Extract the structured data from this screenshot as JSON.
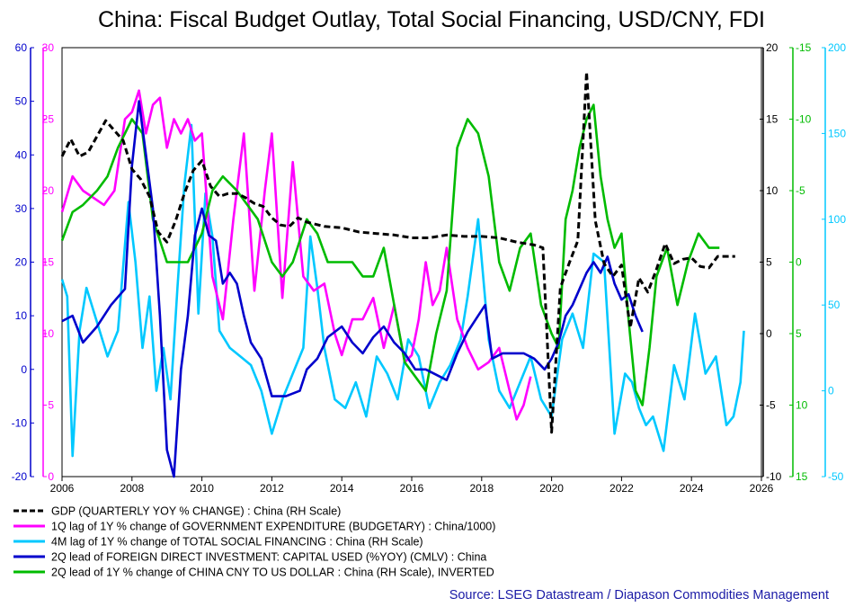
{
  "chart_data": {
    "type": "line",
    "title": "China: Fiscal Budget Outlay, Total Social Financing, USD/CNY, FDI",
    "source": "Source: LSEG Datastream / Diapason Commodities Management",
    "x_axis": {
      "range": [
        2006,
        2026
      ],
      "ticks": [
        "2006",
        "2008",
        "2010",
        "2012",
        "2014",
        "2016",
        "2018",
        "2020",
        "2022",
        "2024",
        "2026"
      ]
    },
    "axes": {
      "left_fdi": {
        "color": "#0000cc",
        "range": [
          -20,
          60
        ],
        "ticks": [
          "-20",
          "-10",
          "0",
          "10",
          "20",
          "30",
          "40",
          "50",
          "60"
        ]
      },
      "left_exp": {
        "color": "#ff00ff",
        "range": [
          0,
          30
        ],
        "ticks": [
          "0",
          "5",
          "10",
          "15",
          "20",
          "25",
          "30"
        ]
      },
      "right_gdp": {
        "color": "#000000",
        "range": [
          -10,
          20
        ],
        "ticks": [
          "-10",
          "-5",
          "0",
          "5",
          "10",
          "15",
          "20"
        ]
      },
      "right_cny": {
        "color": "#00bb00",
        "range": [
          15,
          -15
        ],
        "inverted": true,
        "ticks": [
          "15",
          "10",
          "5",
          "0",
          "-5",
          "-10",
          "-15"
        ]
      },
      "right_tsf": {
        "color": "#00c8ff",
        "range": [
          -50,
          200
        ],
        "ticks": [
          "-50",
          "0",
          "50",
          "100",
          "150",
          "200"
        ]
      }
    },
    "legend": [
      {
        "label": "GDP (QUARTERLY YOY % CHANGE) : China  (RH Scale)",
        "color": "#000000",
        "dashed": true
      },
      {
        "label": "1Q lag of 1Y % change of GOVERNMENT EXPENDITURE (BUDGETARY) : China/1000)",
        "color": "#ff00ff"
      },
      {
        "label": "4M lag of 1Y % change of TOTAL SOCIAL FINANCING : China (RH Scale)",
        "color": "#00c8ff"
      },
      {
        "label": "2Q lead of FOREIGN DIRECT INVESTMENT: CAPITAL USED (%YOY) (CMLV) : China",
        "color": "#0000cc"
      },
      {
        "label": "2Q lead of 1Y % change of CHINA CNY TO US DOLLAR : China (RH Scale), INVERTED",
        "color": "#00bb00"
      }
    ],
    "series": [
      {
        "name": "GDP (QUARTERLY YOY % CHANGE) : China  (RH Scale)",
        "axis": "right_gdp",
        "color": "#000000",
        "dashed": true,
        "x": [
          2006.0,
          2006.25,
          2006.5,
          2006.75,
          2007.0,
          2007.25,
          2007.5,
          2007.75,
          2008.0,
          2008.25,
          2008.5,
          2008.75,
          2009.0,
          2009.25,
          2009.5,
          2009.75,
          2010.0,
          2010.25,
          2010.5,
          2010.75,
          2011.0,
          2011.25,
          2011.5,
          2011.75,
          2012.0,
          2012.25,
          2012.5,
          2012.75,
          2013.0,
          2013.5,
          2014.0,
          2014.5,
          2015.0,
          2015.5,
          2016.0,
          2016.5,
          2017.0,
          2017.5,
          2018.0,
          2018.5,
          2019.0,
          2019.5,
          2019.75,
          2020.0,
          2020.25,
          2020.5,
          2020.75,
          2021.0,
          2021.25,
          2021.5,
          2021.75,
          2022.0,
          2022.25,
          2022.5,
          2022.75,
          2023.0,
          2023.25,
          2023.5,
          2023.75,
          2024.0,
          2024.25,
          2024.5,
          2024.75,
          2025.0,
          2025.25
        ],
        "values": [
          12.4,
          13.6,
          12.4,
          12.7,
          13.8,
          14.9,
          14.2,
          13.5,
          11.5,
          10.8,
          9.6,
          7.1,
          6.4,
          7.9,
          9.8,
          11.4,
          12.1,
          10.3,
          9.6,
          9.8,
          9.8,
          9.5,
          9.1,
          8.9,
          8.1,
          7.6,
          7.5,
          8.1,
          7.8,
          7.5,
          7.4,
          7.1,
          7.0,
          6.9,
          6.7,
          6.7,
          6.9,
          6.8,
          6.8,
          6.7,
          6.4,
          6.2,
          6.0,
          -6.9,
          3.2,
          4.9,
          6.5,
          18.3,
          7.9,
          4.9,
          4.0,
          4.8,
          0.4,
          3.9,
          2.9,
          4.5,
          6.3,
          4.9,
          5.2,
          5.3,
          4.7,
          4.6,
          5.4,
          5.4,
          5.4
        ]
      },
      {
        "name": "1Q lag of 1Y % change of GOVERNMENT EXPENDITURE (BUDGETARY) : China/1000)",
        "axis": "left_exp",
        "color": "#ff00ff",
        "x": [
          2006.0,
          2006.3,
          2006.6,
          2006.9,
          2007.2,
          2007.5,
          2007.8,
          2008.0,
          2008.2,
          2008.4,
          2008.6,
          2008.8,
          2009.0,
          2009.2,
          2009.4,
          2009.6,
          2009.8,
          2010.0,
          2010.3,
          2010.6,
          2010.9,
          2011.2,
          2011.5,
          2011.8,
          2012.0,
          2012.3,
          2012.6,
          2012.9,
          2013.2,
          2013.5,
          2013.8,
          2014.0,
          2014.3,
          2014.6,
          2014.9,
          2015.2,
          2015.5,
          2015.8,
          2016.0,
          2016.2,
          2016.4,
          2016.6,
          2016.8,
          2017.0,
          2017.3,
          2017.6,
          2017.9,
          2018.2,
          2018.5,
          2018.8,
          2019.0,
          2019.2,
          2019.4
        ],
        "values": [
          18.5,
          21,
          20,
          19.5,
          19,
          20,
          25,
          25.5,
          27,
          24,
          26,
          26.5,
          23,
          25,
          24,
          25,
          23.5,
          24,
          14,
          11,
          18,
          24,
          13,
          20,
          24,
          12.5,
          22,
          14,
          13,
          13.5,
          10,
          8.5,
          11,
          11,
          12.5,
          9,
          12,
          8,
          8.5,
          11,
          15,
          12,
          13,
          16,
          11,
          9,
          7.5,
          8,
          9,
          6,
          4,
          5,
          7
        ]
      },
      {
        "name": "4M lag of 1Y % change of TOTAL SOCIAL FINANCING : China (RH Scale)",
        "axis": "right_tsf",
        "color": "#00c8ff",
        "x": [
          2006.0,
          2006.15,
          2006.3,
          2006.5,
          2006.7,
          2007.0,
          2007.3,
          2007.6,
          2007.9,
          2008.1,
          2008.3,
          2008.5,
          2008.7,
          2008.9,
          2009.1,
          2009.3,
          2009.5,
          2009.7,
          2009.9,
          2010.1,
          2010.3,
          2010.5,
          2010.8,
          2011.1,
          2011.4,
          2011.7,
          2012.0,
          2012.3,
          2012.6,
          2012.9,
          2013.1,
          2013.3,
          2013.5,
          2013.8,
          2014.1,
          2014.4,
          2014.7,
          2015.0,
          2015.3,
          2015.6,
          2015.9,
          2016.2,
          2016.5,
          2016.8,
          2017.1,
          2017.4,
          2017.6,
          2017.9,
          2018.2,
          2018.5,
          2018.8,
          2019.1,
          2019.4,
          2019.7,
          2020.0,
          2020.3,
          2020.6,
          2020.9,
          2021.2,
          2021.5,
          2021.8,
          2022.1,
          2022.3,
          2022.5,
          2022.7,
          2022.9,
          2023.2,
          2023.5,
          2023.8,
          2024.1,
          2024.4,
          2024.7,
          2025.0,
          2025.2,
          2025.4,
          2025.5
        ],
        "values": [
          65,
          55,
          -38,
          35,
          60,
          40,
          20,
          35,
          110,
          75,
          25,
          55,
          0,
          25,
          -5,
          60,
          120,
          155,
          45,
          115,
          90,
          35,
          25,
          20,
          15,
          0,
          -25,
          -5,
          10,
          25,
          90,
          60,
          25,
          -5,
          -10,
          5,
          -15,
          20,
          10,
          -5,
          30,
          20,
          -10,
          5,
          15,
          30,
          55,
          100,
          30,
          0,
          -10,
          5,
          20,
          -5,
          -15,
          30,
          45,
          25,
          80,
          75,
          -25,
          10,
          5,
          -10,
          -20,
          -15,
          -35,
          15,
          -5,
          45,
          10,
          20,
          -20,
          -15,
          5,
          35
        ]
      },
      {
        "name": "2Q lead of FOREIGN DIRECT INVESTMENT: CAPITAL USED (%YOY) (CMLV) : China",
        "axis": "left_fdi",
        "color": "#0000cc",
        "x": [
          2006.0,
          2006.3,
          2006.6,
          2007.0,
          2007.4,
          2007.8,
          2008.0,
          2008.2,
          2008.4,
          2008.6,
          2008.8,
          2009.0,
          2009.2,
          2009.4,
          2009.6,
          2009.8,
          2010.0,
          2010.2,
          2010.4,
          2010.6,
          2010.8,
          2011.0,
          2011.2,
          2011.4,
          2011.7,
          2012.0,
          2012.4,
          2012.8,
          2013.0,
          2013.3,
          2013.6,
          2014.0,
          2014.3,
          2014.6,
          2014.9,
          2015.2,
          2015.5,
          2015.8,
          2016.1,
          2016.4,
          2016.7,
          2017.0,
          2017.3,
          2017.6,
          2017.9,
          2018.1,
          2018.3,
          2018.6,
          2018.9,
          2019.2,
          2019.5,
          2019.8,
          2020.0,
          2020.2,
          2020.4,
          2020.6,
          2020.8,
          2021.0,
          2021.2,
          2021.4,
          2021.6,
          2021.8,
          2022.0,
          2022.2,
          2022.4,
          2022.6
        ],
        "values": [
          9,
          10,
          5,
          8,
          12,
          15,
          38,
          50,
          40,
          30,
          10,
          -15,
          -20,
          0,
          10,
          25,
          30,
          25,
          24,
          16,
          18,
          16,
          10,
          5,
          2,
          -5,
          -5,
          -4,
          0,
          2,
          6,
          8,
          5,
          3,
          6,
          8,
          5,
          3,
          0,
          0,
          -1,
          -2,
          3,
          7,
          10,
          12,
          2,
          3,
          3,
          3,
          2,
          0,
          2,
          5,
          10,
          12,
          15,
          18,
          20,
          18,
          21,
          16,
          13,
          14,
          10,
          7
        ]
      },
      {
        "name": "2Q lead of 1Y % change of CHINA CNY TO US DOLLAR : China (RH Scale), INVERTED",
        "axis": "right_cny",
        "color": "#00bb00",
        "x": [
          2006.0,
          2006.3,
          2006.6,
          2007.0,
          2007.3,
          2007.6,
          2008.0,
          2008.3,
          2008.6,
          2009.0,
          2009.3,
          2009.6,
          2010.0,
          2010.3,
          2010.6,
          2011.0,
          2011.3,
          2011.6,
          2012.0,
          2012.3,
          2012.6,
          2013.0,
          2013.3,
          2013.6,
          2014.0,
          2014.3,
          2014.6,
          2014.9,
          2015.2,
          2015.5,
          2015.8,
          2016.1,
          2016.4,
          2016.7,
          2017.0,
          2017.3,
          2017.6,
          2017.9,
          2018.2,
          2018.5,
          2018.8,
          2019.1,
          2019.4,
          2019.7,
          2020.0,
          2020.2,
          2020.4,
          2020.6,
          2020.8,
          2021.0,
          2021.2,
          2021.4,
          2021.6,
          2021.8,
          2022.0,
          2022.2,
          2022.4,
          2022.6,
          2022.8,
          2023.0,
          2023.3,
          2023.6,
          2023.9,
          2024.2,
          2024.5,
          2024.8
        ],
        "values": [
          -1.5,
          -3.5,
          -4,
          -5,
          -6,
          -8,
          -10,
          -9,
          -3,
          0,
          0,
          0,
          -2,
          -5,
          -6,
          -5,
          -4,
          -3,
          0,
          1,
          0,
          -3,
          -2,
          0,
          0,
          0,
          1,
          1,
          -1,
          3,
          7,
          8,
          9,
          5,
          2,
          -8,
          -10,
          -9,
          -6,
          0,
          2,
          -1,
          -2,
          3,
          5,
          6,
          -3,
          -5,
          -8,
          -10,
          -11,
          -6,
          -3,
          -1,
          -2,
          4,
          9,
          10,
          6,
          1,
          -1,
          3,
          0,
          -2,
          -1,
          -1
        ]
      }
    ]
  }
}
